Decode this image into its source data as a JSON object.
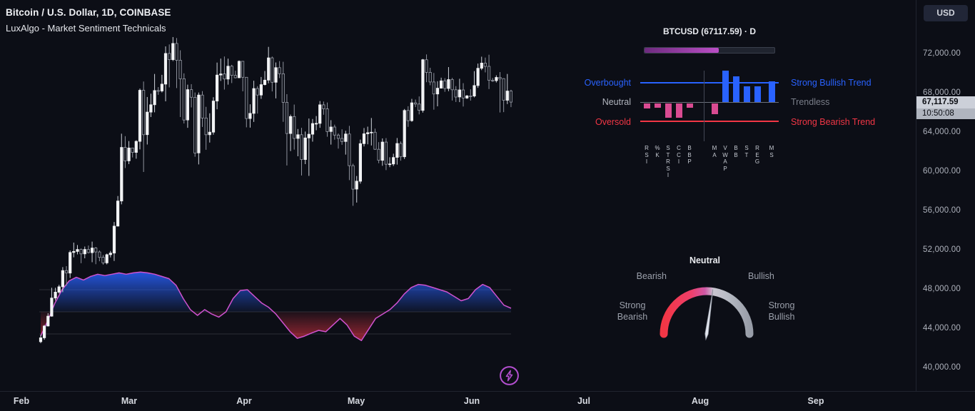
{
  "header": {
    "symbol_title": "Bitcoin / U.S. Dollar, 1D, COINBASE",
    "indicator_title": "LuxAlgo - Market Sentiment Technicals"
  },
  "price_axis": {
    "currency_button": "USD",
    "labels": [
      {
        "price": 72000,
        "text": "72,000.00"
      },
      {
        "price": 68000,
        "text": "68,000.00"
      },
      {
        "price": 64000,
        "text": "64,000.00"
      },
      {
        "price": 60000,
        "text": "60,000.00"
      },
      {
        "price": 56000,
        "text": "56,000.00"
      },
      {
        "price": 52000,
        "text": "52,000.00"
      },
      {
        "price": 48000,
        "text": "48,000.00"
      },
      {
        "price": 44000,
        "text": "44,000.00"
      },
      {
        "price": 40000,
        "text": "40,000.00"
      }
    ],
    "last_price": {
      "value": 67117.59,
      "text": "67,117.59",
      "countdown": "10:50:08"
    }
  },
  "dashboard": {
    "title": "BTCUSD (67117.59) · D",
    "progress_pct": 57,
    "left_labels": [
      {
        "text": "Overbought",
        "color": "#2962ff"
      },
      {
        "text": "Neutral",
        "color": "#b2b6bf"
      },
      {
        "text": "Oversold",
        "color": "#f23645"
      }
    ],
    "right_labels": [
      {
        "text": "Strong Bullish Trend",
        "color": "#2962ff"
      },
      {
        "text": "Trendless",
        "color": "#7a7e89"
      },
      {
        "text": "Strong Bearish Trend",
        "color": "#f23645"
      }
    ],
    "indicators": [
      {
        "name": "RSI",
        "value": -30
      },
      {
        "name": "%K",
        "value": -25
      },
      {
        "name": "STRSI",
        "value": -80
      },
      {
        "name": "CCI",
        "value": -80
      },
      {
        "name": "BBP",
        "value": -25
      },
      {
        "name": "MA",
        "value": -60
      },
      {
        "name": "VWAP",
        "value": 170
      },
      {
        "name": "BB",
        "value": 140
      },
      {
        "name": "ST",
        "value": 85
      },
      {
        "name": "REG",
        "value": 85
      },
      {
        "name": "MS",
        "value": 115
      }
    ]
  },
  "gauge": {
    "labels": {
      "top": "Neutral",
      "left": "Bearish",
      "right": "Bullish",
      "far_left": "Strong\nBearish",
      "far_right": "Strong\nBullish"
    },
    "needle_deg": 8
  },
  "chart_data": {
    "type": "candlestick",
    "symbol": "BTCUSD",
    "exchange": "COINBASE",
    "timeframe": "1D",
    "title": "Bitcoin / U.S. Dollar, 1D, COINBASE",
    "y_axis": {
      "ticks": [
        72000,
        68000,
        64000,
        60000,
        56000,
        52000,
        48000,
        44000,
        40000
      ],
      "ylim": [
        39000,
        74500
      ],
      "last_price": 67117.59
    },
    "x_axis": {
      "months": [
        "Feb",
        "Mar",
        "Apr",
        "May",
        "Jun",
        "Jul",
        "Aug",
        "Sep"
      ]
    },
    "candles": [
      [
        42700,
        43400,
        42550,
        43100
      ],
      [
        43100,
        44400,
        42900,
        44300
      ],
      [
        44300,
        45600,
        44250,
        45300
      ],
      [
        45300,
        48200,
        45250,
        47150
      ],
      [
        47150,
        48200,
        46900,
        47750
      ],
      [
        47750,
        48500,
        47600,
        48300
      ],
      [
        48300,
        50300,
        47750,
        49950
      ],
      [
        49950,
        50400,
        48400,
        49700
      ],
      [
        49700,
        52000,
        49200,
        51800
      ],
      [
        51800,
        52800,
        51300,
        51900
      ],
      [
        51900,
        52550,
        51600,
        52100
      ],
      [
        52100,
        52200,
        50700,
        51650
      ],
      [
        51650,
        52400,
        51200,
        52100
      ],
      [
        52100,
        52500,
        51700,
        51780
      ],
      [
        51780,
        52900,
        50800,
        52250
      ],
      [
        52250,
        52350,
        50600,
        51850
      ],
      [
        51850,
        52000,
        50900,
        51300
      ],
      [
        51300,
        51540,
        50550,
        50730
      ],
      [
        50730,
        51680,
        50580,
        51570
      ],
      [
        51570,
        51950,
        51290,
        51730
      ],
      [
        51730,
        54900,
        50930,
        54480
      ],
      [
        54480,
        57550,
        54450,
        57040
      ],
      [
        57040,
        63900,
        56700,
        62500
      ],
      [
        62500,
        63650,
        60400,
        61130
      ],
      [
        61130,
        63150,
        60800,
        62440
      ],
      [
        62440,
        62450,
        61480,
        61990
      ],
      [
        61990,
        63230,
        61350,
        63120
      ],
      [
        63120,
        68500,
        62300,
        68330
      ],
      [
        68330,
        69220,
        60000,
        63800
      ],
      [
        63800,
        67640,
        62800,
        66100
      ],
      [
        66100,
        67980,
        65600,
        66850
      ],
      [
        66850,
        69990,
        66080,
        68300
      ],
      [
        68300,
        68650,
        67860,
        68250
      ],
      [
        68250,
        69900,
        68100,
        68950
      ],
      [
        68950,
        72800,
        67200,
        72080
      ],
      [
        72080,
        73000,
        68620,
        71450
      ],
      [
        71450,
        73750,
        71300,
        73100
      ],
      [
        73100,
        73650,
        68550,
        71390
      ],
      [
        71390,
        72400,
        65600,
        69500
      ],
      [
        69500,
        70050,
        64940,
        65300
      ],
      [
        65300,
        68900,
        64500,
        68390
      ],
      [
        68390,
        68950,
        66580,
        67610
      ],
      [
        67610,
        68100,
        61550,
        61940
      ],
      [
        61940,
        68100,
        60770,
        67840
      ],
      [
        67840,
        68240,
        64590,
        65500
      ],
      [
        65500,
        66640,
        62260,
        63800
      ],
      [
        63800,
        65980,
        63000,
        64060
      ],
      [
        64060,
        67620,
        63800,
        67230
      ],
      [
        67230,
        71150,
        66390,
        69880
      ],
      [
        69880,
        71560,
        69280,
        69990
      ],
      [
        69990,
        71770,
        68400,
        69470
      ],
      [
        69470,
        71550,
        68900,
        70780
      ],
      [
        70780,
        70920,
        69060,
        69850
      ],
      [
        69850,
        70320,
        69540,
        69600
      ],
      [
        69600,
        71370,
        69580,
        71280
      ],
      [
        71280,
        71290,
        68220,
        69650
      ],
      [
        69650,
        69670,
        64550,
        65450
      ],
      [
        65450,
        66900,
        64520,
        65970
      ],
      [
        65970,
        69300,
        65100,
        68500
      ],
      [
        68500,
        68740,
        65950,
        67840
      ],
      [
        67840,
        69680,
        67450,
        68900
      ],
      [
        68900,
        70290,
        68820,
        69360
      ],
      [
        69360,
        72750,
        69040,
        71630
      ],
      [
        71630,
        71760,
        68210,
        69140
      ],
      [
        69140,
        71160,
        67500,
        70630
      ],
      [
        70630,
        71300,
        69570,
        70010
      ],
      [
        70010,
        71230,
        65110,
        67100
      ],
      [
        67100,
        67930,
        60660,
        63920
      ],
      [
        63920,
        65850,
        62130,
        65650
      ],
      [
        65650,
        66870,
        62280,
        63420
      ],
      [
        63420,
        64380,
        61600,
        63800
      ],
      [
        63800,
        64500,
        59640,
        61270
      ],
      [
        61270,
        64120,
        60800,
        63470
      ],
      [
        63470,
        65450,
        59600,
        63850
      ],
      [
        63850,
        65400,
        63090,
        64940
      ],
      [
        64940,
        65700,
        64250,
        64950
      ],
      [
        64950,
        67230,
        64500,
        66840
      ],
      [
        66840,
        67180,
        65830,
        66430
      ],
      [
        66430,
        67080,
        63590,
        64120
      ],
      [
        64120,
        65280,
        62790,
        64580
      ],
      [
        64580,
        64820,
        63290,
        63760
      ],
      [
        63760,
        63930,
        62380,
        63420
      ],
      [
        63420,
        64350,
        62770,
        63110
      ],
      [
        63110,
        64200,
        61770,
        63870
      ],
      [
        63870,
        64700,
        59170,
        60640
      ],
      [
        60640,
        60840,
        56550,
        58250
      ],
      [
        58250,
        59590,
        56880,
        59060
      ],
      [
        59060,
        63300,
        58810,
        62890
      ],
      [
        62890,
        64480,
        62600,
        63890
      ],
      [
        63890,
        64620,
        62820,
        64010
      ],
      [
        64010,
        65500,
        62700,
        64050
      ],
      [
        64050,
        64420,
        62260,
        62310
      ],
      [
        62310,
        63040,
        60890,
        61190
      ],
      [
        61190,
        63420,
        60630,
        63050
      ],
      [
        63050,
        63450,
        60190,
        60790
      ],
      [
        60790,
        61500,
        60490,
        60820
      ],
      [
        60820,
        61860,
        60610,
        61480
      ],
      [
        61480,
        63460,
        60750,
        62900
      ],
      [
        62900,
        63110,
        61150,
        61550
      ],
      [
        61550,
        66420,
        61320,
        66270
      ],
      [
        66270,
        66700,
        64600,
        65230
      ],
      [
        65230,
        67450,
        65110,
        67050
      ],
      [
        67050,
        67380,
        66610,
        66920
      ],
      [
        66920,
        67700,
        65870,
        66280
      ],
      [
        66280,
        71520,
        66050,
        71440
      ],
      [
        71440,
        71980,
        69150,
        70150
      ],
      [
        70150,
        70620,
        68840,
        69170
      ],
      [
        69170,
        70090,
        66350,
        67950
      ],
      [
        67950,
        69250,
        66690,
        68540
      ],
      [
        68540,
        69610,
        68520,
        69290
      ],
      [
        69290,
        69560,
        68170,
        68510
      ],
      [
        68510,
        70690,
        68230,
        69420
      ],
      [
        69420,
        69590,
        67280,
        68380
      ],
      [
        68380,
        68750,
        67130,
        67640
      ],
      [
        67640,
        69500,
        67120,
        68360
      ],
      [
        68360,
        69050,
        66670,
        67530
      ],
      [
        67530,
        67850,
        67440,
        67750
      ],
      [
        67750,
        68430,
        67270,
        67740
      ],
      [
        67740,
        70280,
        67600,
        68810
      ],
      [
        68810,
        71050,
        68570,
        70570
      ],
      [
        70570,
        71750,
        70380,
        71100
      ],
      [
        71100,
        71660,
        70150,
        70760
      ],
      [
        70760,
        71950,
        68450,
        69340
      ],
      [
        69340,
        69580,
        69170,
        69310
      ],
      [
        69310,
        69850,
        69120,
        69640
      ],
      [
        69640,
        70180,
        66060,
        69510
      ],
      [
        69510,
        69550,
        66100,
        67310
      ],
      [
        67310,
        69990,
        66920,
        68250
      ],
      [
        68250,
        68380,
        66610,
        67120
      ]
    ],
    "oscillator": {
      "name": "LuxAlgo Market Sentiment",
      "range": [
        -100,
        100
      ],
      "levels": [
        50,
        0,
        -50
      ],
      "values": [
        -55,
        -20,
        20,
        50,
        70,
        78,
        72,
        80,
        85,
        82,
        85,
        88,
        85,
        88,
        90,
        88,
        85,
        80,
        75,
        60,
        30,
        5,
        -8,
        5,
        -5,
        -12,
        0,
        30,
        48,
        50,
        35,
        20,
        10,
        -5,
        -25,
        -45,
        -60,
        -55,
        -48,
        -42,
        -45,
        -30,
        -15,
        -30,
        -55,
        -65,
        -40,
        -15,
        -5,
        5,
        20,
        40,
        55,
        62,
        60,
        55,
        50,
        45,
        35,
        25,
        30,
        50,
        62,
        55,
        35,
        15,
        8
      ]
    }
  },
  "colors": {
    "background": "#0c0e16",
    "bullish_blue": "#2962ff",
    "bearish_red": "#f23645",
    "magenta_bar": "#d94b92",
    "oscillator_line": "#cf52cf",
    "purple_accent": "#b44fd0",
    "up_candle": "#f2f3f5",
    "down_candle": "#14171f",
    "axis_text": "#aeb2bc",
    "last_price_badge_bg": "#ccd0d9"
  }
}
